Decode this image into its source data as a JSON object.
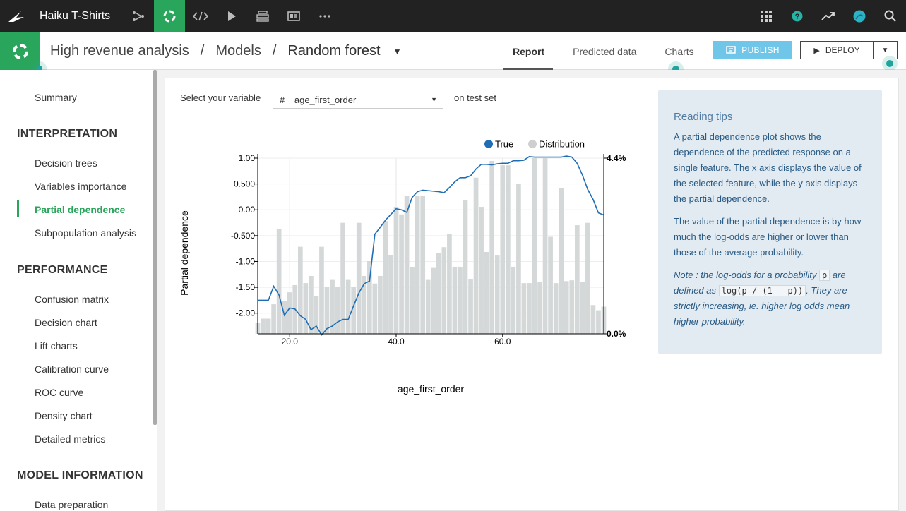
{
  "topnav": {
    "project_name": "Haiku T-Shirts",
    "icons": [
      "dataiku-logo-icon",
      "flow-icon",
      "ml-lab-icon",
      "code-icon",
      "run-icon",
      "datasets-stack-icon",
      "dashboard-icon",
      "more-icon",
      "apps-grid-icon",
      "help-icon",
      "trend-icon",
      "avatar",
      "search-icon"
    ]
  },
  "breadcrumb": {
    "items": [
      "High revenue analysis",
      "Models",
      "Random forest"
    ],
    "separator": "/"
  },
  "tabs": [
    {
      "label": "Report",
      "active": true
    },
    {
      "label": "Predicted data",
      "active": false
    },
    {
      "label": "Charts",
      "active": false
    }
  ],
  "actions": {
    "publish_label": "PUBLISH",
    "deploy_label": "DEPLOY"
  },
  "sidebar": {
    "summary": "Summary",
    "sections": [
      {
        "title": "INTERPRETATION",
        "items": [
          "Decision trees",
          "Variables importance",
          "Partial dependence",
          "Subpopulation analysis"
        ]
      },
      {
        "title": "PERFORMANCE",
        "items": [
          "Confusion matrix",
          "Decision chart",
          "Lift charts",
          "Calibration curve",
          "ROC curve",
          "Density chart",
          "Detailed metrics"
        ]
      },
      {
        "title": "MODEL INFORMATION",
        "items": [
          "Data preparation"
        ]
      }
    ],
    "active_item": "Partial dependence"
  },
  "controls": {
    "select_label": "Select your variable",
    "variable_type": "#",
    "variable": "age_first_order",
    "suffix": "on test set"
  },
  "chart_data": {
    "type": "line",
    "xlabel": "age_first_order",
    "ylabel": "Partial dependence",
    "xlim": [
      14,
      79
    ],
    "ylim": [
      -2.4,
      1.0
    ],
    "x_ticks": [
      "20.0",
      "40.0",
      "60.0"
    ],
    "y_ticks": [
      "1.00",
      "0.500",
      "0.00",
      "-0.500",
      "-1.00",
      "-1.50",
      "-2.00"
    ],
    "y2_ticks": [
      "4.4%",
      "0.0%"
    ],
    "y2lim": [
      0,
      4.4
    ],
    "grid": true,
    "legend_position": "top-right",
    "series": [
      {
        "name": "True",
        "color": "#1f6eb5",
        "x": [
          14,
          15,
          16,
          17,
          18,
          19,
          20,
          21,
          22,
          23,
          24,
          25,
          26,
          27,
          28,
          29,
          30,
          31,
          32,
          33,
          34,
          35,
          36,
          37,
          38,
          39,
          40,
          41,
          42,
          43,
          44,
          45,
          46,
          47,
          48,
          49,
          50,
          51,
          52,
          53,
          54,
          55,
          56,
          57,
          58,
          59,
          60,
          61,
          62,
          63,
          64,
          65,
          66,
          67,
          68,
          69,
          70,
          71,
          72,
          73,
          74,
          75,
          76,
          77,
          78,
          79
        ],
        "y": [
          -1.75,
          -1.75,
          -1.75,
          -1.48,
          -1.65,
          -2.04,
          -1.9,
          -1.92,
          -2.05,
          -2.12,
          -2.32,
          -2.25,
          -2.42,
          -2.3,
          -2.25,
          -2.17,
          -2.12,
          -2.12,
          -1.86,
          -1.61,
          -1.43,
          -1.38,
          -0.47,
          -0.34,
          -0.2,
          -0.09,
          0.02,
          0.0,
          -0.05,
          0.24,
          0.35,
          0.38,
          0.37,
          0.36,
          0.35,
          0.33,
          0.43,
          0.54,
          0.62,
          0.62,
          0.66,
          0.79,
          0.88,
          0.88,
          0.87,
          0.89,
          0.9,
          0.9,
          0.95,
          0.95,
          0.96,
          1.03,
          1.02,
          1.02,
          1.02,
          1.02,
          1.02,
          1.02,
          1.04,
          1.02,
          0.9,
          0.67,
          0.39,
          0.2,
          -0.06,
          -0.1
        ]
      },
      {
        "name": "Distribution",
        "color": "#d5d8d8",
        "x": [
          14,
          15,
          16,
          17,
          18,
          19,
          20,
          21,
          22,
          23,
          24,
          25,
          26,
          27,
          28,
          29,
          30,
          31,
          32,
          33,
          34,
          35,
          36,
          37,
          38,
          39,
          40,
          41,
          42,
          43,
          44,
          45,
          46,
          47,
          48,
          49,
          50,
          51,
          52,
          53,
          54,
          55,
          56,
          57,
          58,
          59,
          60,
          61,
          62,
          63,
          64,
          65,
          66,
          67,
          68,
          69,
          70,
          71,
          72,
          73,
          74,
          75,
          76,
          77,
          78,
          79
        ],
        "y": [
          0.27,
          0.38,
          0.38,
          0.74,
          2.62,
          0.83,
          1.04,
          1.22,
          2.18,
          1.27,
          1.45,
          0.95,
          2.18,
          1.18,
          1.35,
          1.18,
          2.78,
          1.35,
          1.18,
          2.78,
          1.45,
          1.82,
          1.26,
          1.45,
          2.82,
          1.97,
          3.18,
          2.99,
          3.45,
          1.67,
          3.45,
          3.45,
          1.35,
          1.65,
          2.03,
          2.17,
          2.51,
          1.68,
          1.68,
          3.34,
          1.36,
          3.91,
          3.18,
          2.05,
          4.33,
          1.96,
          4.22,
          4.22,
          1.68,
          3.75,
          1.27,
          1.27,
          4.4,
          1.3,
          4.4,
          2.43,
          1.27,
          3.65,
          1.32,
          1.34,
          2.72,
          1.29,
          2.78,
          0.72,
          0.59,
          0.68
        ]
      }
    ]
  },
  "tips": {
    "title": "Reading tips",
    "p1": "A partial dependence plot shows the dependence of the predicted response on a single feature. The x axis displays the value of the selected feature, while the y axis displays the partial dependence.",
    "p2": "The value of the partial dependence is by how much the log-odds are higher or lower than those of the average probability.",
    "note_lead": "Note : the log-odds for a probability ",
    "note_p": "p",
    "note_mid": " are defined as ",
    "note_formula": "log(p / (1 - p))",
    "note_end": ". They are strictly increasing, ie. higher log odds mean higher probability."
  }
}
